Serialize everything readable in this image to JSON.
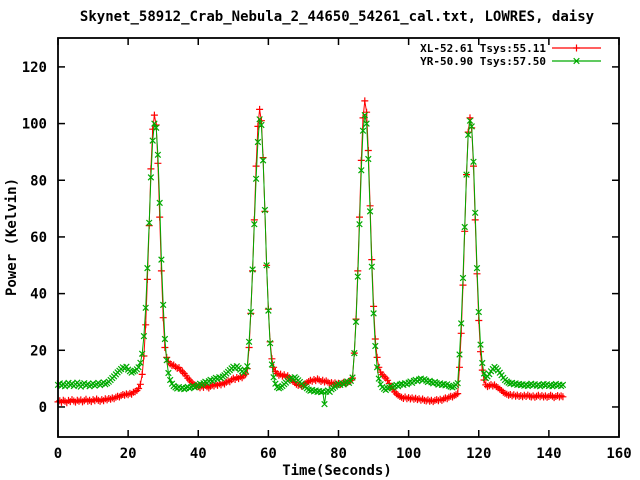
{
  "chart_data": {
    "type": "line",
    "title": "Skynet_58912_Crab_Nebula_2_44650_54261_cal.txt, LOWRES, daisy",
    "xlabel": "Time(Seconds)",
    "ylabel": "Power (Kelvin)",
    "xlim": [
      0,
      160
    ],
    "ylim": [
      -10.6,
      130.2
    ],
    "xticks": [
      0,
      20,
      40,
      60,
      80,
      100,
      120,
      140,
      160
    ],
    "yticks": [
      0,
      20,
      40,
      60,
      80,
      100,
      120
    ],
    "grid": false,
    "legend_position": "top-right-inside",
    "background_color": "#ffffff",
    "border_color": "#000000",
    "x_start": 0,
    "x_step": 0.5,
    "x_end": 144,
    "peak_centers_seconds": [
      27.5,
      57.5,
      87.5,
      117.5
    ],
    "series": [
      {
        "name": "XL-52.61 Tsys:55.11",
        "color": "#ff0000",
        "marker": "plus",
        "values": [
          1.8,
          2.2,
          1.6,
          2.4,
          2.0,
          1.5,
          2.3,
          1.9,
          2.6,
          2.1,
          1.7,
          2.4,
          2.0,
          2.5,
          1.8,
          2.2,
          2.7,
          2.0,
          2.4,
          1.9,
          2.6,
          2.2,
          2.8,
          2.3,
          2.0,
          2.6,
          2.2,
          2.9,
          2.5,
          3.0,
          2.7,
          3.2,
          2.9,
          3.4,
          3.8,
          3.5,
          4.0,
          4.4,
          4.1,
          4.6,
          4.3,
          4.8,
          4.5,
          5.2,
          5.4,
          5.8,
          6.5,
          8.0,
          11.5,
          18.0,
          29.0,
          45.0,
          64.0,
          84.0,
          98.0,
          103.0,
          99.5,
          86.0,
          67.0,
          48.0,
          31.5,
          21.0,
          17.5,
          16.0,
          15.2,
          14.6,
          14.8,
          14.2,
          13.6,
          13.9,
          13.0,
          12.4,
          11.8,
          11.0,
          10.2,
          9.5,
          8.8,
          8.2,
          7.8,
          7.5,
          7.2,
          6.8,
          7.4,
          6.9,
          7.6,
          7.1,
          6.7,
          7.3,
          7.8,
          7.4,
          8.0,
          7.6,
          8.2,
          7.8,
          8.5,
          8.1,
          8.7,
          9.2,
          8.9,
          9.6,
          10.1,
          9.7,
          10.4,
          10.0,
          10.7,
          10.3,
          11.0,
          11.6,
          13.5,
          21.0,
          33.0,
          48.0,
          66.0,
          85.0,
          99.0,
          105.0,
          101.0,
          88.0,
          69.0,
          50.0,
          34.5,
          23.0,
          17.0,
          14.0,
          12.5,
          11.8,
          11.2,
          11.6,
          10.9,
          11.4,
          10.6,
          11.0,
          10.3,
          9.7,
          9.1,
          8.6,
          8.0,
          7.6,
          7.9,
          7.3,
          7.7,
          8.2,
          8.6,
          9.0,
          9.4,
          9.1,
          9.7,
          9.3,
          9.9,
          9.5,
          9.0,
          9.4,
          8.8,
          9.2,
          8.7,
          8.3,
          8.6,
          8.1,
          8.5,
          8.0,
          8.4,
          7.9,
          8.3,
          8.7,
          8.2,
          8.6,
          9.0,
          9.4,
          10.2,
          19.0,
          31.0,
          48.0,
          67.0,
          87.0,
          102.0,
          108.0,
          104.0,
          90.5,
          71.0,
          52.0,
          35.5,
          24.0,
          17.5,
          14.0,
          12.3,
          11.4,
          10.8,
          10.2,
          9.4,
          8.3,
          7.2,
          6.2,
          5.3,
          4.6,
          4.1,
          3.7,
          3.4,
          3.0,
          3.5,
          2.9,
          3.3,
          2.8,
          3.2,
          2.7,
          3.1,
          2.6,
          2.9,
          2.4,
          2.8,
          2.3,
          2.1,
          2.5,
          2.0,
          2.4,
          1.9,
          2.3,
          2.6,
          2.2,
          2.7,
          2.3,
          2.8,
          3.2,
          2.9,
          3.4,
          3.8,
          3.5,
          4.0,
          4.3,
          4.7,
          14.0,
          26.0,
          43.0,
          62.0,
          82.0,
          97.0,
          102.0,
          98.5,
          85.0,
          66.0,
          47.0,
          30.5,
          19.5,
          13.0,
          9.5,
          7.8,
          7.2,
          7.5,
          7.9,
          7.4,
          7.8,
          7.2,
          6.8,
          6.3,
          5.8,
          5.2,
          4.8,
          4.5,
          4.1,
          4.4,
          3.9,
          4.3,
          3.8,
          4.2,
          3.7,
          4.0,
          3.6,
          4.1,
          3.7,
          4.2,
          3.8,
          3.5,
          3.9,
          3.4,
          3.8,
          4.1,
          3.6,
          4.0,
          3.5,
          3.9,
          3.4,
          3.7,
          4.1,
          3.8,
          3.3,
          3.7,
          4.0,
          3.5,
          3.9,
          3.6
        ]
      },
      {
        "name": "YR-50.90 Tsys:57.50",
        "color": "#00aa00",
        "marker": "x",
        "values": [
          7.8,
          8.3,
          7.5,
          8.1,
          7.3,
          7.9,
          8.5,
          7.7,
          8.2,
          7.4,
          8.0,
          8.6,
          7.8,
          7.2,
          7.9,
          8.4,
          7.6,
          8.1,
          7.3,
          7.8,
          8.3,
          7.5,
          8.0,
          8.5,
          7.7,
          8.2,
          8.7,
          8.0,
          8.4,
          8.9,
          9.5,
          10.2,
          10.8,
          11.5,
          12.2,
          12.8,
          13.4,
          14.0,
          13.6,
          14.2,
          13.2,
          12.6,
          12.1,
          12.5,
          12.8,
          13.3,
          14.0,
          15.6,
          18.8,
          25.0,
          35.0,
          49.0,
          65.0,
          81.0,
          94.0,
          100.0,
          98.5,
          89.0,
          72.0,
          52.0,
          36.0,
          24.0,
          16.5,
          12.0,
          9.5,
          8.2,
          7.4,
          6.9,
          6.5,
          7.0,
          6.4,
          6.8,
          6.3,
          6.7,
          7.1,
          6.6,
          7.0,
          7.4,
          6.9,
          7.3,
          7.7,
          8.2,
          7.8,
          8.4,
          8.9,
          8.5,
          9.1,
          9.6,
          9.2,
          9.8,
          10.3,
          9.9,
          10.5,
          10.1,
          10.7,
          11.2,
          11.8,
          12.4,
          13.0,
          13.6,
          14.2,
          13.7,
          14.4,
          13.8,
          13.2,
          12.6,
          12.1,
          12.8,
          14.4,
          23.0,
          33.5,
          48.5,
          64.5,
          80.5,
          93.5,
          101.5,
          99.5,
          87.0,
          69.5,
          50.0,
          34.0,
          22.5,
          15.0,
          10.5,
          8.2,
          7.0,
          6.6,
          6.9,
          7.4,
          8.0,
          8.6,
          9.2,
          9.8,
          10.3,
          9.9,
          10.5,
          10.0,
          9.4,
          8.8,
          8.2,
          7.6,
          7.1,
          6.6,
          6.1,
          5.7,
          6.0,
          5.5,
          5.8,
          5.3,
          5.6,
          5.2,
          5.5,
          1.0,
          5.4,
          5.8,
          5.3,
          6.2,
          6.7,
          7.2,
          7.7,
          8.2,
          7.8,
          8.4,
          8.0,
          8.6,
          9.0,
          8.5,
          9.2,
          10.4,
          19.0,
          30.0,
          46.0,
          64.5,
          83.5,
          97.5,
          103.0,
          100.0,
          87.5,
          69.0,
          49.5,
          33.0,
          21.5,
          14.0,
          10.0,
          8.0,
          7.0,
          6.4,
          6.0,
          6.5,
          6.9,
          7.3,
          6.8,
          7.4,
          7.8,
          7.3,
          7.9,
          8.2,
          7.8,
          8.4,
          8.0,
          8.6,
          9.0,
          8.5,
          9.2,
          9.6,
          9.1,
          9.7,
          10.0,
          9.4,
          9.8,
          9.3,
          8.8,
          9.2,
          8.7,
          8.3,
          8.8,
          8.4,
          7.9,
          8.3,
          7.8,
          8.1,
          7.6,
          8.0,
          7.5,
          7.2,
          6.9,
          7.3,
          7.8,
          8.4,
          18.5,
          29.5,
          45.5,
          63.5,
          82.0,
          96.0,
          101.0,
          99.0,
          86.5,
          68.5,
          49.0,
          33.5,
          22.0,
          15.5,
          11.8,
          10.2,
          10.8,
          11.6,
          12.6,
          13.4,
          14.1,
          13.6,
          12.9,
          12.1,
          11.2,
          10.3,
          9.5,
          9.0,
          8.6,
          8.2,
          8.5,
          8.0,
          8.3,
          7.8,
          8.1,
          7.7,
          8.0,
          7.5,
          7.9,
          7.4,
          7.8,
          8.2,
          7.6,
          8.0,
          7.5,
          7.9,
          7.3,
          7.7,
          8.1,
          7.6,
          8.0,
          7.4,
          7.8,
          7.3,
          7.7,
          8.1,
          7.5,
          7.9,
          7.4,
          7.8
        ]
      }
    ]
  }
}
